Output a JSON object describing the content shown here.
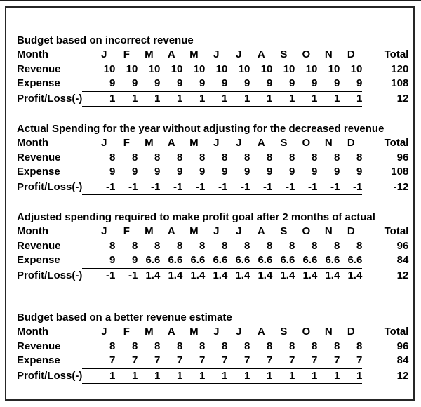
{
  "page": {
    "background": "#ffffff",
    "frame_border_color": "#262626",
    "text_color": "#000000",
    "rule_color": "#000000"
  },
  "tables": [
    {
      "title": "Budget based on incorrect revenue",
      "month_label": "Month",
      "total_label": "Total",
      "months": [
        "J",
        "F",
        "M",
        "A",
        "M",
        "J",
        "J",
        "A",
        "S",
        "O",
        "N",
        "D"
      ],
      "rows": [
        {
          "label": "Revenue",
          "values": [
            10,
            10,
            10,
            10,
            10,
            10,
            10,
            10,
            10,
            10,
            10,
            10
          ],
          "total": 120,
          "underline": false
        },
        {
          "label": "Expense",
          "values": [
            9,
            9,
            9,
            9,
            9,
            9,
            9,
            9,
            9,
            9,
            9,
            9
          ],
          "total": 108,
          "underline": true
        },
        {
          "label": "Profit/Loss(-)",
          "values": [
            1,
            1,
            1,
            1,
            1,
            1,
            1,
            1,
            1,
            1,
            1,
            1
          ],
          "total": 12,
          "underline": true
        }
      ]
    },
    {
      "title": "Actual Spending for the year without adjusting for the decreased revenue",
      "month_label": "Month",
      "total_label": "Total",
      "months": [
        "J",
        "F",
        "M",
        "A",
        "M",
        "J",
        "J",
        "A",
        "S",
        "O",
        "N",
        "D"
      ],
      "rows": [
        {
          "label": "Revenue",
          "values": [
            8,
            8,
            8,
            8,
            8,
            8,
            8,
            8,
            8,
            8,
            8,
            8
          ],
          "total": 96,
          "underline": false
        },
        {
          "label": "Expense",
          "values": [
            9,
            9,
            9,
            9,
            9,
            9,
            9,
            9,
            9,
            9,
            9,
            9
          ],
          "total": 108,
          "underline": true
        },
        {
          "label": "Profit/Loss(-)",
          "values": [
            -1,
            -1,
            -1,
            -1,
            -1,
            -1,
            -1,
            -1,
            -1,
            -1,
            -1,
            -1
          ],
          "total": -12,
          "underline": true
        }
      ]
    },
    {
      "title": "Adjusted spending required to make profit goal after 2 months of actual",
      "month_label": "Month",
      "total_label": "Total",
      "months": [
        "J",
        "F",
        "M",
        "A",
        "M",
        "J",
        "J",
        "A",
        "S",
        "O",
        "N",
        "D"
      ],
      "rows": [
        {
          "label": "Revenue",
          "values": [
            8,
            8,
            8,
            8,
            8,
            8,
            8,
            8,
            8,
            8,
            8,
            8
          ],
          "total": 96,
          "underline": false
        },
        {
          "label": "Expense",
          "values": [
            9,
            9,
            6.6,
            6.6,
            6.6,
            6.6,
            6.6,
            6.6,
            6.6,
            6.6,
            6.6,
            6.6
          ],
          "total": 84,
          "underline": true
        },
        {
          "label": "Profit/Loss(-)",
          "values": [
            -1,
            -1,
            1.4,
            1.4,
            1.4,
            1.4,
            1.4,
            1.4,
            1.4,
            1.4,
            1.4,
            1.4
          ],
          "total": 12,
          "underline": true
        }
      ]
    },
    {
      "title": "Budget based on a better revenue estimate",
      "month_label": "Month",
      "total_label": "Total",
      "months": [
        "J",
        "F",
        "M",
        "A",
        "M",
        "J",
        "J",
        "A",
        "S",
        "O",
        "N",
        "D"
      ],
      "rows": [
        {
          "label": "Revenue",
          "values": [
            8,
            8,
            8,
            8,
            8,
            8,
            8,
            8,
            8,
            8,
            8,
            8
          ],
          "total": 96,
          "underline": false
        },
        {
          "label": "Expense",
          "values": [
            7,
            7,
            7,
            7,
            7,
            7,
            7,
            7,
            7,
            7,
            7,
            7
          ],
          "total": 84,
          "underline": true
        },
        {
          "label": "Profit/Loss(-)",
          "values": [
            1,
            1,
            1,
            1,
            1,
            1,
            1,
            1,
            1,
            1,
            1,
            1
          ],
          "total": 12,
          "underline": true
        }
      ]
    }
  ]
}
